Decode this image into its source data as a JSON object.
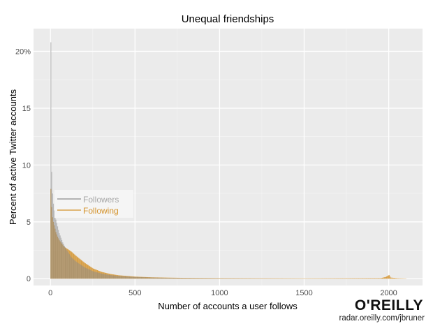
{
  "chart_data": {
    "type": "bar",
    "title": "Unequal friendships",
    "xlabel": "Number of accounts a user follows",
    "ylabel": "Percent of active Twitter accounts",
    "xlim": [
      -100,
      2200
    ],
    "ylim": [
      -0.6,
      22
    ],
    "xticks": [
      0,
      500,
      1000,
      1500,
      2000
    ],
    "yticks": [
      0,
      5,
      10,
      15,
      20
    ],
    "ytick_labels": [
      "0",
      "5",
      "10",
      "15",
      "20%"
    ],
    "grid": true,
    "legend_position": "upper-left",
    "series": [
      {
        "name": "Followers",
        "color": "#8c8c8c",
        "x": [
          0,
          5,
          10,
          15,
          20,
          25,
          30,
          40,
          50,
          60,
          70,
          80,
          90,
          100,
          120,
          150,
          200,
          250,
          300,
          350,
          400,
          500,
          600,
          700,
          800,
          1000,
          1200,
          1500,
          2000
        ],
        "values": [
          20.8,
          9.4,
          7.5,
          6.6,
          6.0,
          5.6,
          5.2,
          4.6,
          4.0,
          3.6,
          3.2,
          2.9,
          2.6,
          2.4,
          1.9,
          1.5,
          1.0,
          0.65,
          0.45,
          0.32,
          0.24,
          0.15,
          0.1,
          0.07,
          0.05,
          0.03,
          0.02,
          0.01,
          0.01
        ]
      },
      {
        "name": "Following",
        "color": "#d4922a",
        "x": [
          0,
          5,
          10,
          15,
          20,
          25,
          30,
          40,
          50,
          60,
          70,
          80,
          90,
          100,
          120,
          150,
          200,
          250,
          300,
          350,
          400,
          500,
          600,
          700,
          800,
          1000,
          1200,
          1500,
          1950,
          1980,
          2000,
          2010,
          2050,
          2100
        ],
        "values": [
          7.9,
          6.3,
          5.4,
          5.0,
          4.7,
          4.4,
          4.1,
          3.7,
          3.4,
          3.2,
          3.0,
          2.8,
          2.7,
          2.6,
          2.4,
          2.0,
          1.4,
          0.9,
          0.6,
          0.42,
          0.3,
          0.18,
          0.12,
          0.09,
          0.07,
          0.05,
          0.04,
          0.03,
          0.05,
          0.15,
          0.32,
          0.1,
          0.04,
          0.02
        ]
      }
    ]
  },
  "branding": {
    "logo": "O'REILLY",
    "credit": "radar.oreilly.com/jbruner"
  }
}
